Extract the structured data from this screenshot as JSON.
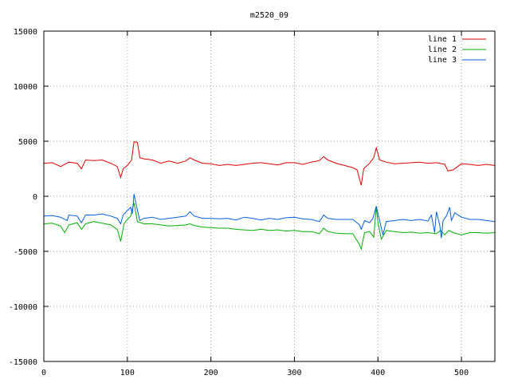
{
  "chart_data": {
    "type": "line",
    "title": "m2520_09",
    "xlabel": "",
    "ylabel": "",
    "xlim": [
      0,
      540
    ],
    "ylim": [
      -15000,
      15000
    ],
    "x_ticks": [
      0,
      100,
      200,
      300,
      400,
      500
    ],
    "y_ticks": [
      -15000,
      -10000,
      -5000,
      0,
      5000,
      10000,
      15000
    ],
    "x_tick_labels": [
      "0",
      "100",
      "200",
      "300",
      "400",
      "500"
    ],
    "y_tick_labels": [
      "-15000",
      "-10000",
      "-5000",
      "0",
      "5000",
      "10000",
      "15000"
    ],
    "grid": true,
    "legend_position": "top-right",
    "series": [
      {
        "name": "line 1",
        "color": "#e00000",
        "points": [
          [
            0,
            3000
          ],
          [
            10,
            3050
          ],
          [
            20,
            2700
          ],
          [
            30,
            3100
          ],
          [
            40,
            3000
          ],
          [
            45,
            2500
          ],
          [
            50,
            3300
          ],
          [
            60,
            3250
          ],
          [
            70,
            3300
          ],
          [
            80,
            3000
          ],
          [
            88,
            2700
          ],
          [
            92,
            1700
          ],
          [
            95,
            2500
          ],
          [
            100,
            2800
          ],
          [
            105,
            3300
          ],
          [
            108,
            4950
          ],
          [
            112,
            4900
          ],
          [
            115,
            3500
          ],
          [
            120,
            3400
          ],
          [
            130,
            3300
          ],
          [
            140,
            3000
          ],
          [
            150,
            3200
          ],
          [
            160,
            3000
          ],
          [
            170,
            3200
          ],
          [
            175,
            3500
          ],
          [
            180,
            3300
          ],
          [
            190,
            3000
          ],
          [
            200,
            2950
          ],
          [
            210,
            2800
          ],
          [
            220,
            2900
          ],
          [
            230,
            2800
          ],
          [
            240,
            2900
          ],
          [
            250,
            3000
          ],
          [
            260,
            3050
          ],
          [
            270,
            2950
          ],
          [
            280,
            2850
          ],
          [
            290,
            3050
          ],
          [
            300,
            3050
          ],
          [
            310,
            2900
          ],
          [
            320,
            3100
          ],
          [
            330,
            3250
          ],
          [
            335,
            3600
          ],
          [
            340,
            3300
          ],
          [
            350,
            3000
          ],
          [
            360,
            2800
          ],
          [
            370,
            2600
          ],
          [
            375,
            2400
          ],
          [
            380,
            1000
          ],
          [
            383,
            2500
          ],
          [
            390,
            3000
          ],
          [
            395,
            3500
          ],
          [
            398,
            4400
          ],
          [
            402,
            3300
          ],
          [
            410,
            3100
          ],
          [
            420,
            2950
          ],
          [
            430,
            3000
          ],
          [
            440,
            3050
          ],
          [
            450,
            3100
          ],
          [
            460,
            3000
          ],
          [
            470,
            3050
          ],
          [
            480,
            2900
          ],
          [
            484,
            2300
          ],
          [
            490,
            2400
          ],
          [
            500,
            2950
          ],
          [
            510,
            2900
          ],
          [
            520,
            2800
          ],
          [
            530,
            2900
          ],
          [
            540,
            2800
          ]
        ]
      },
      {
        "name": "line 2",
        "color": "#00b000",
        "points": [
          [
            0,
            -2500
          ],
          [
            10,
            -2450
          ],
          [
            20,
            -2700
          ],
          [
            25,
            -3300
          ],
          [
            30,
            -2600
          ],
          [
            40,
            -2400
          ],
          [
            45,
            -3000
          ],
          [
            50,
            -2500
          ],
          [
            60,
            -2300
          ],
          [
            70,
            -2450
          ],
          [
            80,
            -2600
          ],
          [
            88,
            -3000
          ],
          [
            92,
            -4100
          ],
          [
            96,
            -2500
          ],
          [
            100,
            -2100
          ],
          [
            104,
            -1800
          ],
          [
            108,
            -600
          ],
          [
            112,
            -2300
          ],
          [
            120,
            -2500
          ],
          [
            130,
            -2500
          ],
          [
            140,
            -2600
          ],
          [
            150,
            -2700
          ],
          [
            160,
            -2650
          ],
          [
            170,
            -2600
          ],
          [
            175,
            -2500
          ],
          [
            180,
            -2650
          ],
          [
            190,
            -2800
          ],
          [
            200,
            -2850
          ],
          [
            210,
            -2900
          ],
          [
            220,
            -2900
          ],
          [
            230,
            -3000
          ],
          [
            240,
            -3050
          ],
          [
            250,
            -3100
          ],
          [
            260,
            -3000
          ],
          [
            270,
            -3100
          ],
          [
            280,
            -3050
          ],
          [
            290,
            -3150
          ],
          [
            300,
            -3100
          ],
          [
            310,
            -3200
          ],
          [
            320,
            -3200
          ],
          [
            330,
            -3400
          ],
          [
            335,
            -2900
          ],
          [
            340,
            -3200
          ],
          [
            350,
            -3350
          ],
          [
            360,
            -3400
          ],
          [
            370,
            -3400
          ],
          [
            378,
            -4400
          ],
          [
            380,
            -4800
          ],
          [
            384,
            -3300
          ],
          [
            390,
            -3200
          ],
          [
            395,
            -3700
          ],
          [
            398,
            -1000
          ],
          [
            400,
            -2400
          ],
          [
            404,
            -3900
          ],
          [
            410,
            -3100
          ],
          [
            420,
            -3200
          ],
          [
            430,
            -3300
          ],
          [
            440,
            -3250
          ],
          [
            450,
            -3350
          ],
          [
            460,
            -3300
          ],
          [
            470,
            -3400
          ],
          [
            475,
            -3100
          ],
          [
            480,
            -3500
          ],
          [
            485,
            -3100
          ],
          [
            490,
            -3300
          ],
          [
            500,
            -3500
          ],
          [
            510,
            -3300
          ],
          [
            520,
            -3300
          ],
          [
            530,
            -3350
          ],
          [
            540,
            -3300
          ]
        ]
      },
      {
        "name": "line 3",
        "color": "#0060e0",
        "points": [
          [
            0,
            -1800
          ],
          [
            10,
            -1750
          ],
          [
            20,
            -1900
          ],
          [
            28,
            -2200
          ],
          [
            30,
            -1700
          ],
          [
            40,
            -1800
          ],
          [
            45,
            -2400
          ],
          [
            50,
            -1700
          ],
          [
            60,
            -1700
          ],
          [
            70,
            -1600
          ],
          [
            80,
            -1800
          ],
          [
            88,
            -2000
          ],
          [
            92,
            -2500
          ],
          [
            95,
            -1700
          ],
          [
            100,
            -1300
          ],
          [
            104,
            -1000
          ],
          [
            106,
            -1600
          ],
          [
            108,
            200
          ],
          [
            111,
            -900
          ],
          [
            115,
            -2200
          ],
          [
            120,
            -2000
          ],
          [
            130,
            -1900
          ],
          [
            140,
            -2100
          ],
          [
            150,
            -2000
          ],
          [
            160,
            -1900
          ],
          [
            170,
            -1800
          ],
          [
            175,
            -1400
          ],
          [
            180,
            -1800
          ],
          [
            190,
            -2000
          ],
          [
            200,
            -2000
          ],
          [
            210,
            -2050
          ],
          [
            220,
            -2000
          ],
          [
            230,
            -2150
          ],
          [
            240,
            -1900
          ],
          [
            250,
            -2000
          ],
          [
            260,
            -2150
          ],
          [
            270,
            -2000
          ],
          [
            280,
            -2100
          ],
          [
            290,
            -1950
          ],
          [
            300,
            -1900
          ],
          [
            310,
            -2050
          ],
          [
            320,
            -2100
          ],
          [
            330,
            -2300
          ],
          [
            335,
            -1700
          ],
          [
            340,
            -2000
          ],
          [
            350,
            -2100
          ],
          [
            360,
            -2100
          ],
          [
            370,
            -2100
          ],
          [
            378,
            -2600
          ],
          [
            380,
            -3000
          ],
          [
            384,
            -2200
          ],
          [
            390,
            -2400
          ],
          [
            394,
            -2000
          ],
          [
            398,
            -900
          ],
          [
            402,
            -2200
          ],
          [
            406,
            -3500
          ],
          [
            410,
            -2300
          ],
          [
            420,
            -2200
          ],
          [
            430,
            -2100
          ],
          [
            440,
            -2200
          ],
          [
            450,
            -2100
          ],
          [
            460,
            -2250
          ],
          [
            464,
            -1700
          ],
          [
            468,
            -3300
          ],
          [
            470,
            -1400
          ],
          [
            474,
            -2600
          ],
          [
            476,
            -3800
          ],
          [
            478,
            -2200
          ],
          [
            482,
            -1800
          ],
          [
            486,
            -1000
          ],
          [
            488,
            -2200
          ],
          [
            492,
            -1500
          ],
          [
            500,
            -1900
          ],
          [
            510,
            -2100
          ],
          [
            520,
            -2100
          ],
          [
            530,
            -2200
          ],
          [
            540,
            -2300
          ]
        ]
      }
    ]
  }
}
